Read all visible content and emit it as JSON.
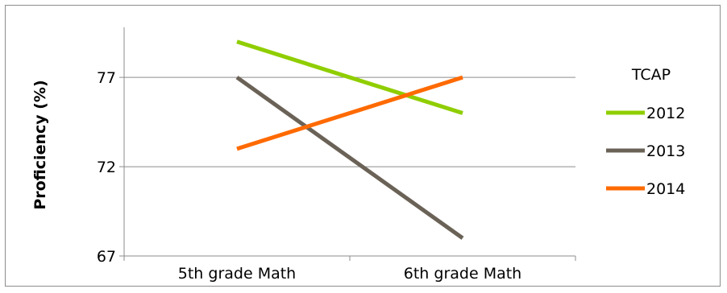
{
  "chart_data": {
    "type": "line",
    "title": "",
    "xlabel": "",
    "ylabel": "Proficiency (%)",
    "categories": [
      "5th grade Math",
      "6th grade Math"
    ],
    "ylim": [
      67,
      79.8
    ],
    "yticks": [
      67,
      72,
      77
    ],
    "grid": true,
    "legend": {
      "title": "TCAP",
      "placement": "right"
    },
    "series": [
      {
        "name": "2012",
        "color": "#8fce00",
        "values": [
          79.0,
          75.0
        ]
      },
      {
        "name": "2013",
        "color": "#6b6257",
        "values": [
          77.0,
          68.0
        ]
      },
      {
        "name": "2014",
        "color": "#ff6a00",
        "values": [
          73.0,
          77.0
        ]
      }
    ]
  }
}
